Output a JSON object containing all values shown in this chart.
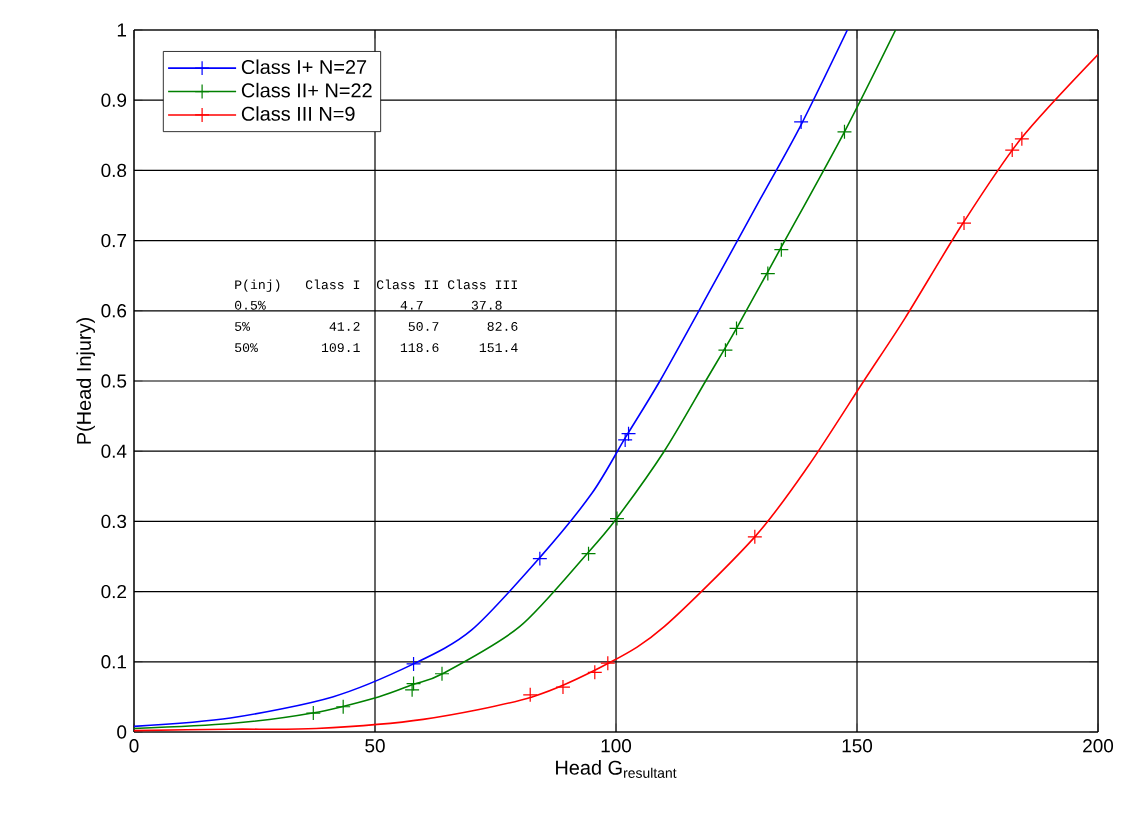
{
  "chart_data": {
    "type": "line",
    "xlabel": "\\mathrm{Head\\ G}_{\\mathrm{resultant}}",
    "ylabel": "P(Head Injury)",
    "xlim": [
      0,
      200
    ],
    "ylim": [
      0,
      1
    ],
    "xticks": [
      0,
      50,
      100,
      150,
      200
    ],
    "yticks": [
      0,
      0.1,
      0.2,
      0.3,
      0.4,
      0.5,
      0.6,
      0.7,
      0.8,
      0.9,
      1
    ],
    "grid": true,
    "legend": "top left",
    "annotations": [
      "P(inj)   Class I  Class II Class III",
      "0.5%                 4.7      37.8",
      "5%          41.2      50.7      82.6",
      "50%        109.1     118.6     151.4"
    ],
    "series": [
      {
        "name": "Class I+ N=27",
        "marker": "none",
        "color": "#0000ff",
        "x": [
          0,
          20,
          41.2,
          58,
          70,
          84,
          95,
          102,
          109.1,
          120,
          130,
          138.4,
          148
        ],
        "values": [
          0.008,
          0.02,
          0.05,
          0.097,
          0.145,
          0.247,
          0.34,
          0.42,
          0.5,
          0.635,
          0.76,
          0.865,
          1.0
        ]
      },
      {
        "name": "Class II+ N=22",
        "marker": "none",
        "color": "#008000",
        "x": [
          0,
          20,
          37,
          50.7,
          58,
          64,
          80,
          94,
          100,
          110,
          118.6,
          125,
          134,
          147.4,
          158
        ],
        "values": [
          0.005,
          0.012,
          0.027,
          0.05,
          0.068,
          0.083,
          0.15,
          0.254,
          0.303,
          0.4,
          0.5,
          0.575,
          0.687,
          0.855,
          1.0
        ]
      },
      {
        "name": "Class III N=9",
        "marker": "none",
        "color": "#ff0000",
        "x": [
          0,
          20,
          37.8,
          60,
          82.6,
          99,
          110,
          128.8,
          140,
          151.4,
          160,
          172,
          184,
          200
        ],
        "values": [
          0.002,
          0.004,
          0.005,
          0.018,
          0.05,
          0.1,
          0.15,
          0.278,
          0.38,
          0.5,
          0.59,
          0.725,
          0.845,
          0.965
        ]
      },
      {
        "type": "scatter",
        "marker": "cross",
        "color": "#0000ff",
        "x": [
          58,
          84.2,
          101.9,
          102.6,
          138.4
        ],
        "values": [
          0.097,
          0.247,
          0.416,
          0.425,
          0.869
        ]
      },
      {
        "type": "scatter",
        "marker": "cross",
        "color": "#008000",
        "x": [
          37.2,
          43.4,
          57.7,
          58,
          63.9,
          94.3,
          100.2,
          122.7,
          125,
          131.5,
          134.3,
          147.4
        ],
        "values": [
          0.027,
          0.036,
          0.06,
          0.069,
          0.083,
          0.254,
          0.304,
          0.544,
          0.575,
          0.653,
          0.687,
          0.855
        ]
      },
      {
        "type": "scatter",
        "marker": "cross",
        "color": "#ff0000",
        "x": [
          82.2,
          89,
          95.6,
          98.3,
          128.8,
          172.2,
          182.2,
          184.2
        ],
        "values": [
          0.053,
          0.064,
          0.085,
          0.098,
          0.278,
          0.725,
          0.829,
          0.845
        ]
      }
    ]
  }
}
